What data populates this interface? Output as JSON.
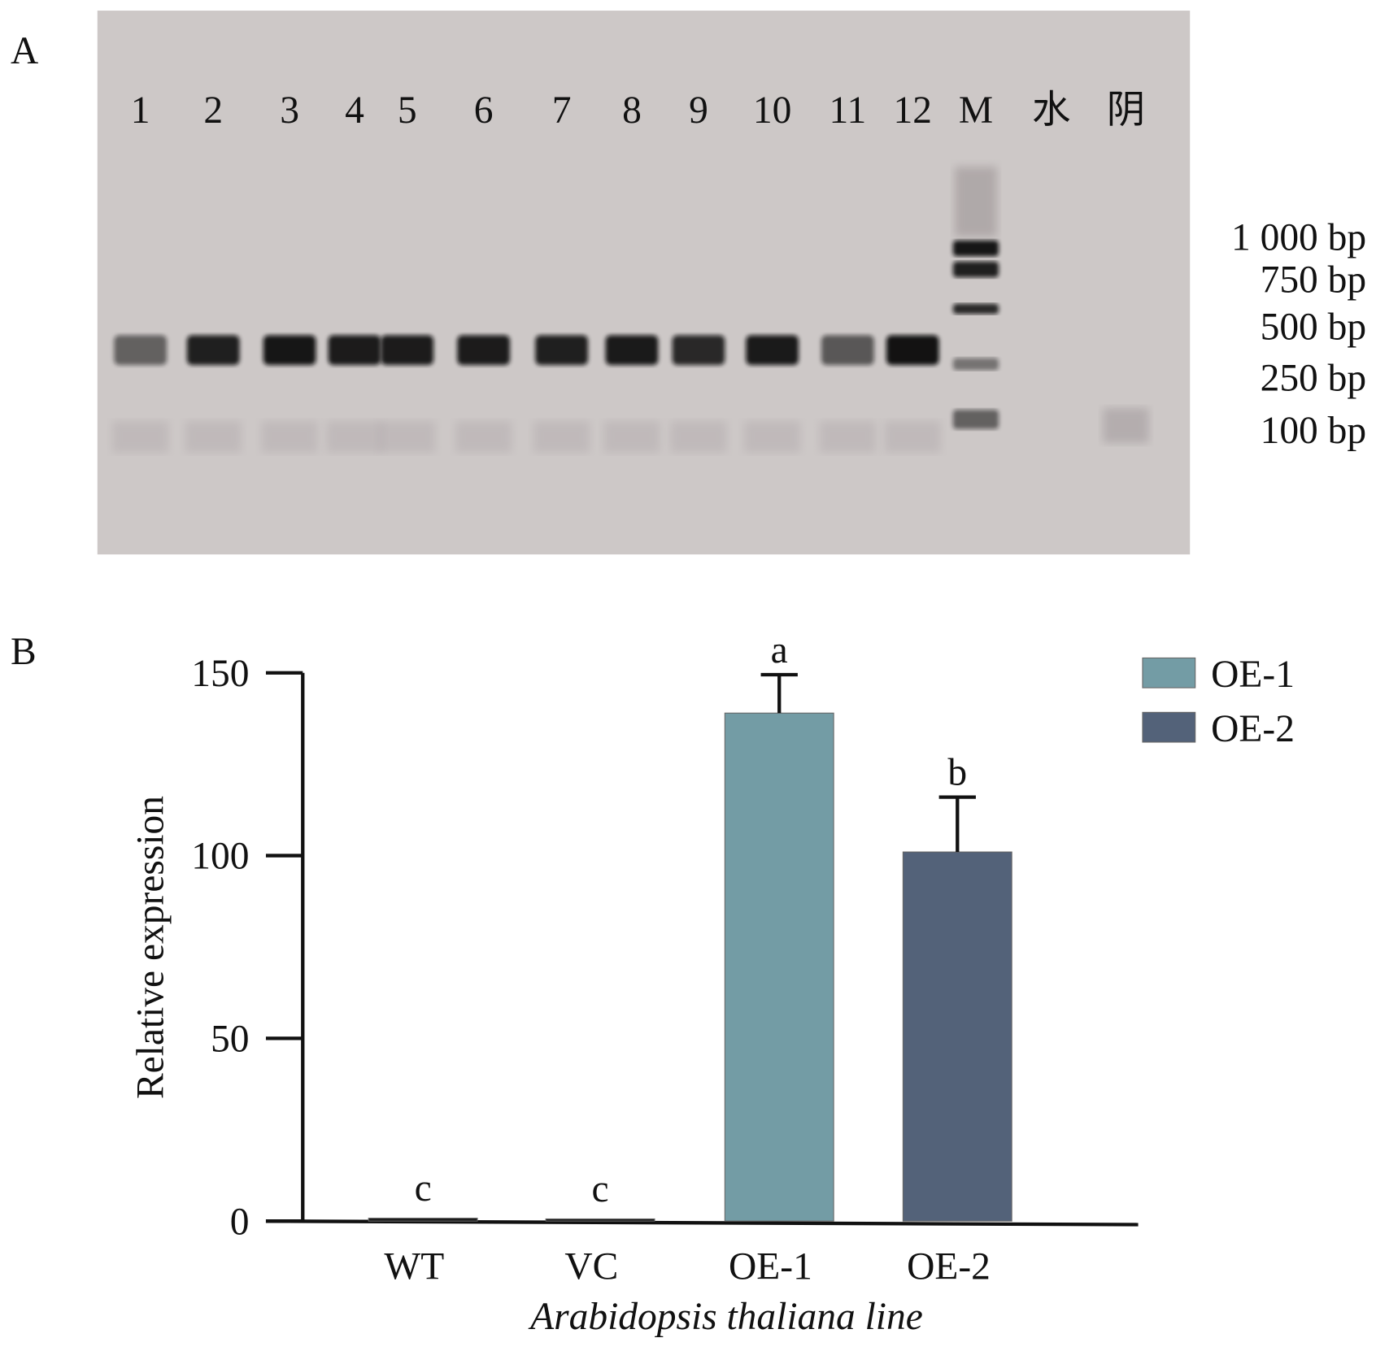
{
  "panel_a": {
    "panel_label": "A",
    "lane_labels": [
      "1",
      "2",
      "3",
      "4",
      "5",
      "6",
      "7",
      "8",
      "9",
      "10",
      "11",
      "12",
      "M",
      "水",
      "阴"
    ],
    "marker_labels": [
      "1 000 bp",
      "750 bp",
      "500 bp",
      "250 bp",
      "100 bp"
    ]
  },
  "chart_data": {
    "type": "bar",
    "panel_label": "B",
    "categories": [
      "WT",
      "VC",
      "OE-1",
      "OE-2"
    ],
    "values": [
      0.8,
      0.6,
      139,
      101
    ],
    "error_upper": [
      null,
      null,
      149.5,
      116
    ],
    "significance_letters": [
      "c",
      "c",
      "a",
      "b"
    ],
    "bar_colors": [
      "#1a1a1a",
      "#1a1a1a",
      "#739ca5",
      "#536279"
    ],
    "xlabel": "Arabidopsis thaliana line",
    "ylabel": "Relative expression",
    "ylim": [
      0,
      150
    ],
    "yticks": [
      "0",
      "50",
      "100",
      "150"
    ],
    "grid": false,
    "legend": {
      "placement": "top-right",
      "entries": [
        {
          "name": "OE-1",
          "color": "#739ca5"
        },
        {
          "name": "OE-2",
          "color": "#536279"
        }
      ]
    }
  }
}
